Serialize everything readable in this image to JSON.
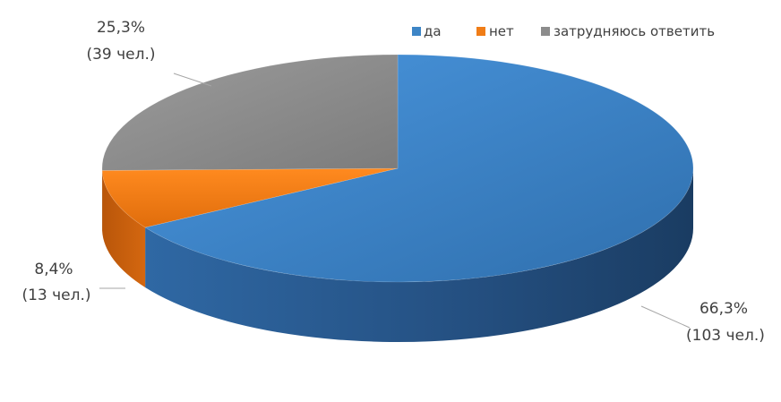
{
  "chart_data": {
    "type": "pie",
    "style": "3d",
    "categories": [
      "да",
      "нет",
      "затрудняюсь ответить"
    ],
    "values": [
      66.3,
      8.4,
      25.3
    ],
    "counts": [
      103,
      13,
      39
    ],
    "colors": [
      "#3d85c6",
      "#f07d17",
      "#9a9a9a"
    ],
    "legend_position": "top-right",
    "legend": [
      "да",
      "нет",
      "затрудняюсь ответить"
    ],
    "labels": {
      "da": {
        "pct": "66,3%",
        "count": "(103 чел.)"
      },
      "net": {
        "pct": "8,4%",
        "count": "(13 чел.)"
      },
      "hard": {
        "pct": "25,3%",
        "count": "(39 чел.)"
      }
    }
  }
}
